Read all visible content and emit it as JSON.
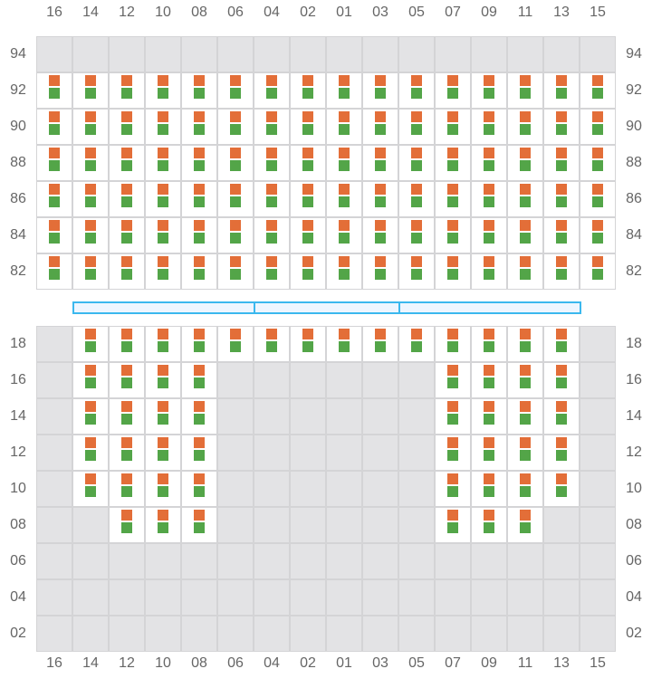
{
  "columns": [
    "16",
    "14",
    "12",
    "10",
    "08",
    "06",
    "04",
    "02",
    "01",
    "03",
    "05",
    "07",
    "09",
    "11",
    "13",
    "15"
  ],
  "colors": {
    "top_marker": "#e36e38",
    "bottom_marker": "#53a548",
    "empty": "#e3e3e5",
    "open": "#ffffff",
    "border": "#d4d4d6",
    "bridge_border": "#3bb8ee",
    "bridge_fill": "#eef6ff"
  },
  "upper_section": {
    "rows": [
      {
        "label": "94",
        "cells": "0000000000000000"
      },
      {
        "label": "92",
        "cells": "1111111111111111"
      },
      {
        "label": "90",
        "cells": "1111111111111111"
      },
      {
        "label": "88",
        "cells": "1111111111111111"
      },
      {
        "label": "86",
        "cells": "1111111111111111"
      },
      {
        "label": "84",
        "cells": "1111111111111111"
      },
      {
        "label": "82",
        "cells": "1111111111111111"
      }
    ]
  },
  "bridge_segments": 3,
  "lower_section": {
    "rows": [
      {
        "label": "18",
        "cells": "0111111111111110"
      },
      {
        "label": "16",
        "cells": "0111100000011110"
      },
      {
        "label": "14",
        "cells": "0111100000011110"
      },
      {
        "label": "12",
        "cells": "0111100000011110"
      },
      {
        "label": "10",
        "cells": "0111100000011110"
      },
      {
        "label": "08",
        "cells": "0011100000011100"
      },
      {
        "label": "06",
        "cells": "0000000000000000"
      },
      {
        "label": "04",
        "cells": "0000000000000000"
      },
      {
        "label": "02",
        "cells": "0000000000000000"
      }
    ]
  }
}
